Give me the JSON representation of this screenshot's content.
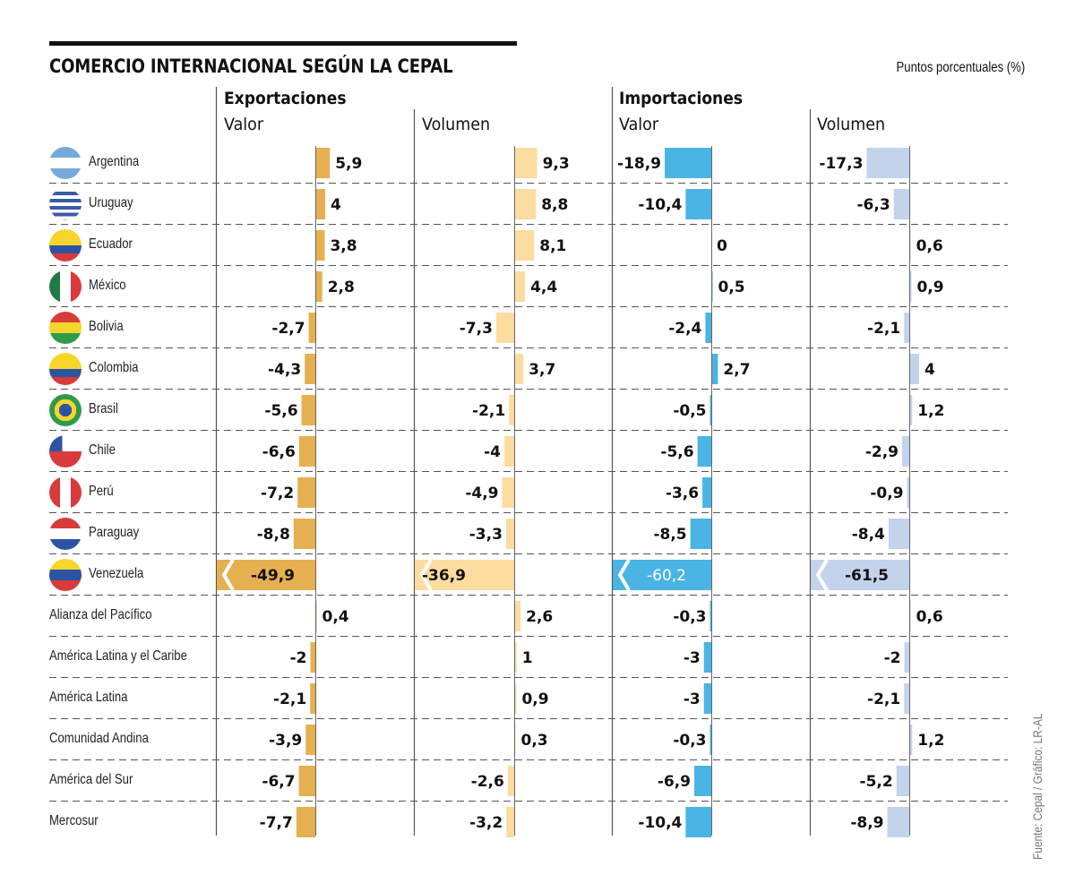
{
  "header": {
    "title": "COMERCIO INTERNACIONAL SEGÚN LA CEPAL",
    "units": "Puntos porcentuales (%)"
  },
  "groups": [
    {
      "label": "Exportaciones",
      "subcolumns": [
        "Valor",
        "Volumen"
      ]
    },
    {
      "label": "Importaciones",
      "subcolumns": [
        "Valor",
        "Volumen"
      ]
    }
  ],
  "source": "Fuente: Cepal / Gráfico: LR-AL",
  "colors": {
    "exp_valor": "#e6b050",
    "exp_volumen": "#fddca0",
    "imp_valor": "#4ab4e4",
    "imp_volumen": "#c4d3ec",
    "axis": "#555555",
    "grid": "#555555"
  },
  "chart_data": {
    "type": "bar",
    "orientation": "horizontal",
    "title": "COMERCIO INTERNACIONAL SEGÚN LA CEPAL",
    "subtitle": "Puntos porcentuales (%)",
    "categories": [
      "Argentina",
      "Uruguay",
      "Ecuador",
      "México",
      "Bolivia",
      "Colombia",
      "Brasil",
      "Chile",
      "Perú",
      "Paraguay",
      "Venezuela",
      "Alianza del Pacífico",
      "América Latina y el Caribe",
      "América Latina",
      "Comunidad Andina",
      "América del Sur",
      "Mercosur"
    ],
    "flags": [
      "argentina",
      "uruguay",
      "ecuador",
      "mexico",
      "bolivia",
      "colombia",
      "brasil",
      "chile",
      "peru",
      "paraguay",
      "venezuela",
      null,
      null,
      null,
      null,
      null,
      null
    ],
    "series": [
      {
        "name": "Exportaciones - Valor",
        "color_key": "exp_valor",
        "values": [
          5.9,
          4,
          3.8,
          2.8,
          -2.7,
          -4.3,
          -5.6,
          -6.6,
          -7.2,
          -8.8,
          -49.9,
          0.4,
          -2,
          -2.1,
          -3.9,
          -6.7,
          -7.7
        ],
        "labels": [
          "5,9",
          "4",
          "3,8",
          "2,8",
          "-2,7",
          "-4,3",
          "-5,6",
          "-6,6",
          "-7,2",
          "-8,8",
          "-49,9",
          "0,4",
          "-2",
          "-2,1",
          "-3,9",
          "-6,7",
          "-7,7"
        ]
      },
      {
        "name": "Exportaciones - Volumen",
        "color_key": "exp_volumen",
        "values": [
          9.3,
          8.8,
          8.1,
          4.4,
          -7.3,
          3.7,
          -2.1,
          -4,
          -4.9,
          -3.3,
          -36.9,
          2.6,
          1,
          0.9,
          0.3,
          -2.6,
          -3.2
        ],
        "labels": [
          "9,3",
          "8,8",
          "8,1",
          "4,4",
          "-7,3",
          "3,7",
          "-2,1",
          "-4",
          "-4,9",
          "-3,3",
          "-36,9",
          "2,6",
          "1",
          "0,9",
          "0,3",
          "-2,6",
          "-3,2"
        ]
      },
      {
        "name": "Importaciones - Valor",
        "color_key": "imp_valor",
        "values": [
          -18.9,
          -10.4,
          0,
          0.5,
          -2.4,
          2.7,
          -0.5,
          -5.6,
          -3.6,
          -8.5,
          -60.2,
          -0.3,
          -3,
          -3,
          -0.3,
          -6.9,
          -10.4
        ],
        "labels": [
          "-18,9",
          "-10,4",
          "0",
          "0,5",
          "-2,4",
          "2,7",
          "-0,5",
          "-5,6",
          "-3,6",
          "-8,5",
          "-60,2",
          "-0,3",
          "-3",
          "-3",
          "-0,3",
          "-6,9",
          "-10,4"
        ]
      },
      {
        "name": "Importaciones - Volumen",
        "color_key": "imp_volumen",
        "values": [
          -17.3,
          -6.3,
          0.6,
          0.9,
          -2.1,
          4,
          1.2,
          -2.9,
          -0.9,
          -8.4,
          -61.5,
          0.6,
          -2,
          -2.1,
          1.2,
          -5.2,
          -8.9
        ],
        "labels": [
          "-17,3",
          "-6,3",
          "0,6",
          "0,9",
          "-2,1",
          "4",
          "1,2",
          "-2,9",
          "-0,9",
          "-8,4",
          "-61,5",
          "0,6",
          "-2",
          "-2,1",
          "1,2",
          "-5,2",
          "-8,9"
        ]
      }
    ],
    "broken_axis_threshold": -30,
    "xlabel": "",
    "ylabel": "",
    "grid": "dashed-row-separators",
    "legend": "column-headers"
  }
}
